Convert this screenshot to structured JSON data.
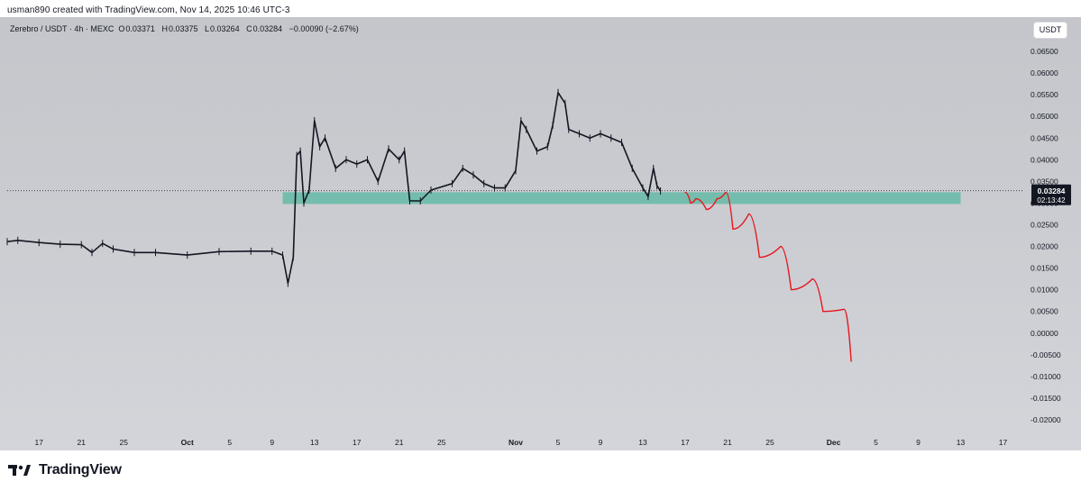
{
  "caption": "usman890 created with TradingView.com, Nov 14, 2025 10:46 UTC-3",
  "legend": {
    "symbol": "Zerebro / USDT · 4h · MEXC",
    "open_label": "O",
    "open": "0.03371",
    "high_label": "H",
    "high": "0.03375",
    "low_label": "L",
    "low": "0.03264",
    "close_label": "C",
    "close": "0.03284",
    "change": "−0.00090 (−2.67%)"
  },
  "currency_button": "USDT",
  "brand": {
    "logo_icon": "tradingview-logo-icon",
    "name": "TradingView"
  },
  "colors": {
    "candle": "#131722",
    "zone": "#5fb8a2",
    "projection": "#e8141c",
    "last_price_badge": "#131722"
  },
  "chart_data": {
    "type": "candlestick",
    "title": "Zerebro / USDT · 4h · MEXC",
    "xlabel": "",
    "ylabel": "",
    "grid": false,
    "ylim": [
      -0.0225,
      0.0675
    ],
    "y_ticks": [
      "0.06500",
      "0.06000",
      "0.05500",
      "0.05000",
      "0.04500",
      "0.04000",
      "0.03500",
      "0.03000",
      "0.02500",
      "0.02000",
      "0.01500",
      "0.01000",
      "0.00500",
      "0.00000",
      "-0.00500",
      "-0.01000",
      "-0.01500",
      "-0.02000"
    ],
    "y_tick_values": [
      0.065,
      0.06,
      0.055,
      0.05,
      0.045,
      0.04,
      0.035,
      0.03,
      0.025,
      0.02,
      0.015,
      0.01,
      0.005,
      0,
      -0.005,
      -0.01,
      -0.015,
      -0.02
    ],
    "x_range": [
      "2025-09-14",
      "2025-12-19"
    ],
    "x_ticks": [
      {
        "label": "17",
        "date": "2025-09-17"
      },
      {
        "label": "21",
        "date": "2025-09-21"
      },
      {
        "label": "25",
        "date": "2025-09-25"
      },
      {
        "label": "Oct",
        "date": "2025-10-01",
        "bold": true
      },
      {
        "label": "5",
        "date": "2025-10-05"
      },
      {
        "label": "9",
        "date": "2025-10-09"
      },
      {
        "label": "13",
        "date": "2025-10-13"
      },
      {
        "label": "17",
        "date": "2025-10-17"
      },
      {
        "label": "21",
        "date": "2025-10-21"
      },
      {
        "label": "25",
        "date": "2025-10-25"
      },
      {
        "label": "Nov",
        "date": "2025-11-01",
        "bold": true
      },
      {
        "label": "5",
        "date": "2025-11-05"
      },
      {
        "label": "9",
        "date": "2025-11-09"
      },
      {
        "label": "13",
        "date": "2025-11-13"
      },
      {
        "label": "17",
        "date": "2025-11-17"
      },
      {
        "label": "21",
        "date": "2025-11-21"
      },
      {
        "label": "25",
        "date": "2025-11-25"
      },
      {
        "label": "Dec",
        "date": "2025-12-01",
        "bold": true
      },
      {
        "label": "5",
        "date": "2025-12-05"
      },
      {
        "label": "9",
        "date": "2025-12-09"
      },
      {
        "label": "13",
        "date": "2025-12-13"
      },
      {
        "label": "17",
        "date": "2025-12-17"
      }
    ],
    "price_path": [
      {
        "date": "2025-09-14",
        "close": 0.0211
      },
      {
        "date": "2025-09-15",
        "close": 0.0214
      },
      {
        "date": "2025-09-17",
        "close": 0.0209
      },
      {
        "date": "2025-09-19",
        "close": 0.0205
      },
      {
        "date": "2025-09-21",
        "close": 0.0204
      },
      {
        "date": "2025-09-22",
        "close": 0.0186
      },
      {
        "date": "2025-09-23",
        "close": 0.0207
      },
      {
        "date": "2025-09-24",
        "close": 0.0194
      },
      {
        "date": "2025-09-26",
        "close": 0.0186
      },
      {
        "date": "2025-09-28",
        "close": 0.0186
      },
      {
        "date": "2025-10-01",
        "close": 0.018
      },
      {
        "date": "2025-10-04",
        "close": 0.0188
      },
      {
        "date": "2025-10-07",
        "close": 0.0189
      },
      {
        "date": "2025-10-09",
        "close": 0.0189
      },
      {
        "date": "2025-10-10",
        "close": 0.018
      },
      {
        "date": "2025-10-10T12",
        "close": 0.0115
      },
      {
        "date": "2025-10-11",
        "close": 0.0175
      },
      {
        "date": "2025-10-11T08",
        "close": 0.041
      },
      {
        "date": "2025-10-11T16",
        "close": 0.042
      },
      {
        "date": "2025-10-12",
        "close": 0.03
      },
      {
        "date": "2025-10-12T12",
        "close": 0.033
      },
      {
        "date": "2025-10-13",
        "close": 0.049
      },
      {
        "date": "2025-10-13T12",
        "close": 0.043
      },
      {
        "date": "2025-10-14",
        "close": 0.045
      },
      {
        "date": "2025-10-15",
        "close": 0.038
      },
      {
        "date": "2025-10-16",
        "close": 0.04
      },
      {
        "date": "2025-10-17",
        "close": 0.039
      },
      {
        "date": "2025-10-18",
        "close": 0.04
      },
      {
        "date": "2025-10-19",
        "close": 0.035
      },
      {
        "date": "2025-10-20",
        "close": 0.0425
      },
      {
        "date": "2025-10-21",
        "close": 0.04
      },
      {
        "date": "2025-10-21T12",
        "close": 0.042
      },
      {
        "date": "2025-10-22",
        "close": 0.0305
      },
      {
        "date": "2025-10-23",
        "close": 0.0305
      },
      {
        "date": "2025-10-24",
        "close": 0.033
      },
      {
        "date": "2025-10-26",
        "close": 0.0345
      },
      {
        "date": "2025-10-27",
        "close": 0.038
      },
      {
        "date": "2025-10-28",
        "close": 0.0365
      },
      {
        "date": "2025-10-29",
        "close": 0.0345
      },
      {
        "date": "2025-10-30",
        "close": 0.0335
      },
      {
        "date": "2025-10-31",
        "close": 0.0335
      },
      {
        "date": "2025-11-01",
        "close": 0.0375
      },
      {
        "date": "2025-11-01T12",
        "close": 0.049
      },
      {
        "date": "2025-11-02",
        "close": 0.047
      },
      {
        "date": "2025-11-03",
        "close": 0.042
      },
      {
        "date": "2025-11-04",
        "close": 0.043
      },
      {
        "date": "2025-11-04T12",
        "close": 0.048
      },
      {
        "date": "2025-11-05",
        "close": 0.0555
      },
      {
        "date": "2025-11-05T16",
        "close": 0.053
      },
      {
        "date": "2025-11-06",
        "close": 0.047
      },
      {
        "date": "2025-11-07",
        "close": 0.046
      },
      {
        "date": "2025-11-08",
        "close": 0.045
      },
      {
        "date": "2025-11-09",
        "close": 0.046
      },
      {
        "date": "2025-11-10",
        "close": 0.045
      },
      {
        "date": "2025-11-11",
        "close": 0.044
      },
      {
        "date": "2025-11-12",
        "close": 0.038
      },
      {
        "date": "2025-11-13",
        "close": 0.0335
      },
      {
        "date": "2025-11-13T12",
        "close": 0.0315
      },
      {
        "date": "2025-11-14",
        "close": 0.038
      },
      {
        "date": "2025-11-14T08",
        "close": 0.034
      },
      {
        "date": "2025-11-14T16",
        "close": 0.0328
      }
    ],
    "support_zone": {
      "from": 0.0298,
      "to": 0.0325,
      "start_date": "2025-10-10",
      "end_date": "2025-12-13"
    },
    "projection_path": [
      {
        "date": "2025-11-17",
        "close": 0.0325
      },
      {
        "date": "2025-11-17T12",
        "close": 0.03
      },
      {
        "date": "2025-11-18",
        "close": 0.031
      },
      {
        "date": "2025-11-19",
        "close": 0.0285
      },
      {
        "date": "2025-11-20",
        "close": 0.031
      },
      {
        "date": "2025-11-20T20",
        "close": 0.0325
      },
      {
        "date": "2025-11-21T12",
        "close": 0.024
      },
      {
        "date": "2025-11-23",
        "close": 0.0275
      },
      {
        "date": "2025-11-24",
        "close": 0.0175
      },
      {
        "date": "2025-11-26",
        "close": 0.02
      },
      {
        "date": "2025-11-27",
        "close": 0.01
      },
      {
        "date": "2025-11-29",
        "close": 0.0125
      },
      {
        "date": "2025-11-30",
        "close": 0.005
      },
      {
        "date": "2025-12-02",
        "close": 0.0055
      },
      {
        "date": "2025-12-02T16",
        "close": -0.0065
      }
    ],
    "last_price": {
      "value": 0.03284,
      "label": "0.03284",
      "countdown": "02:13:42"
    }
  }
}
